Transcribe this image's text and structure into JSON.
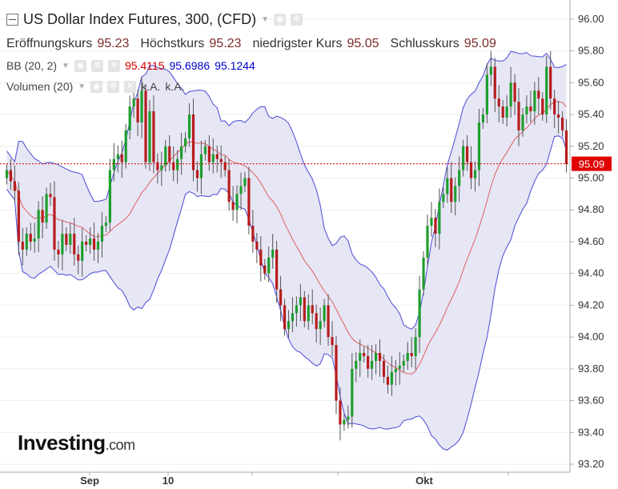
{
  "header": {
    "title": "US Dollar Index Futures, 300, (CFD)",
    "open_label": "Eröffnungskurs",
    "open_value": "95.23",
    "high_label": "Höchstkurs",
    "high_value": "95.23",
    "low_label": "niedrigster Kurs",
    "low_value": "95.05",
    "close_label": "Schlusskurs",
    "close_value": "95.09"
  },
  "bb": {
    "label": "BB (20, 2)",
    "mid": "95.4115",
    "upper": "95.6986",
    "lower": "95.1244"
  },
  "volume": {
    "label": "Volumen (20)",
    "v1": "k.A.",
    "v2": "k.A."
  },
  "logo": {
    "brand": "Investing",
    "suffix": ".com"
  },
  "colors": {
    "up": "#1e9e2e",
    "down": "#b71c1c",
    "band_fill": "#e6e6f5",
    "band_line": "#4a4ad8",
    "mid_line": "#e06060",
    "price_line": "#e00000"
  },
  "chart_data": {
    "type": "candlestick",
    "y_ticks": [
      "96.00",
      "95.80",
      "95.60",
      "95.40",
      "95.20",
      "95.00",
      "94.80",
      "94.60",
      "94.40",
      "94.20",
      "94.00",
      "93.80",
      "93.60",
      "93.40",
      "93.20"
    ],
    "ylim": [
      93.15,
      96.12
    ],
    "x_tick_labels": [
      "Sep",
      "10",
      "Okt"
    ],
    "last_price": "95.09",
    "closes": [
      95.05,
      94.98,
      94.92,
      94.6,
      94.55,
      94.65,
      94.6,
      94.62,
      94.8,
      94.72,
      94.9,
      94.88,
      94.55,
      94.52,
      94.65,
      94.58,
      94.65,
      94.52,
      94.48,
      94.6,
      94.58,
      94.62,
      94.55,
      94.6,
      94.7,
      94.72,
      95.05,
      95.12,
      95.15,
      95.1,
      95.3,
      95.45,
      95.5,
      95.35,
      95.55,
      95.1,
      95.42,
      95.1,
      95.05,
      95.08,
      95.2,
      95.1,
      95.05,
      95.12,
      95.2,
      95.25,
      95.4,
      95.05,
      95.0,
      95.15,
      95.2,
      95.1,
      95.15,
      95.12,
      95.1,
      95.05,
      94.85,
      94.8,
      94.9,
      94.95,
      95.0,
      94.7,
      94.6,
      94.55,
      94.45,
      94.4,
      94.5,
      94.55,
      94.3,
      94.2,
      94.05,
      94.1,
      94.15,
      94.2,
      94.25,
      94.1,
      94.2,
      94.15,
      94.05,
      94.1,
      94.2,
      94.0,
      93.95,
      93.6,
      93.45,
      93.48,
      93.5,
      93.8,
      93.85,
      93.9,
      93.88,
      93.8,
      93.85,
      93.9,
      93.85,
      93.75,
      93.7,
      93.78,
      93.8,
      93.82,
      93.85,
      93.9,
      93.88,
      94.0,
      94.3,
      94.5,
      94.7,
      94.75,
      94.65,
      94.85,
      94.9,
      95.0,
      94.85,
      94.95,
      95.05,
      95.2,
      95.1,
      95.0,
      95.05,
      95.35,
      95.4,
      95.65,
      95.7,
      95.5,
      95.45,
      95.38,
      95.45,
      95.6,
      95.48,
      95.3,
      95.4,
      95.45,
      95.42,
      95.55,
      95.5,
      95.4,
      95.7,
      95.5,
      95.4,
      95.38,
      95.3,
      95.09
    ]
  }
}
